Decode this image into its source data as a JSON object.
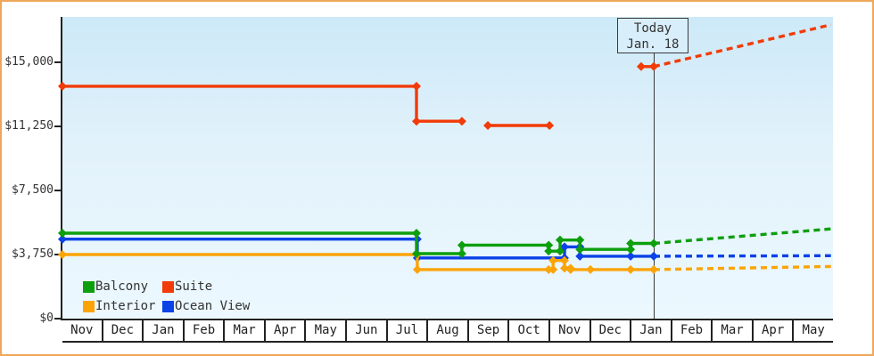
{
  "chart_data": {
    "type": "line",
    "x_axis": {
      "unit": "month",
      "months": [
        "Nov",
        "Dec",
        "Jan",
        "Feb",
        "Mar",
        "Apr",
        "May",
        "Jun",
        "Jul",
        "Aug",
        "Sep",
        "Oct",
        "Nov",
        "Dec",
        "Jan",
        "Feb",
        "Mar",
        "Apr",
        "May"
      ]
    },
    "y_axis": {
      "ticks": [
        {
          "label": "$0",
          "value": 0
        },
        {
          "label": "$3,750",
          "value": 3750
        },
        {
          "label": "$7,500",
          "value": 7500
        },
        {
          "label": "$11,250",
          "value": 11250
        },
        {
          "label": "$15,000",
          "value": 15000
        }
      ],
      "ylim": [
        0,
        17650
      ]
    },
    "grid": false,
    "legend_position": "bottom-left-inside",
    "today": {
      "label_line1": "Today",
      "label_line2": "Jan. 18",
      "month_position": 14.58
    },
    "series": [
      {
        "name": "Balcony",
        "color": "#0d9f0d",
        "segments": [
          {
            "dashed": false,
            "markers": true,
            "points": [
              [
                0,
                5000
              ],
              [
                8.73,
                5000
              ],
              [
                8.73,
                3800
              ],
              [
                9.85,
                3800
              ],
              [
                9.85,
                4300
              ],
              [
                11.99,
                4300
              ],
              [
                11.99,
                3950
              ],
              [
                12.27,
                3950
              ],
              [
                12.27,
                4600
              ],
              [
                12.76,
                4600
              ],
              [
                12.76,
                4050
              ],
              [
                14.01,
                4050
              ],
              [
                14.01,
                4400
              ],
              [
                14.58,
                4400
              ]
            ]
          },
          {
            "dashed": true,
            "markers": false,
            "points": [
              [
                14.58,
                4400
              ],
              [
                18.95,
                5250
              ]
            ]
          }
        ]
      },
      {
        "name": "Suite",
        "color": "#f23b08",
        "segments": [
          {
            "dashed": false,
            "markers": true,
            "points": [
              [
                0,
                13600
              ],
              [
                8.73,
                13600
              ],
              [
                8.73,
                11550
              ],
              [
                9.85,
                11550
              ]
            ]
          },
          {
            "dashed": false,
            "markers": true,
            "points": [
              [
                10.49,
                11300
              ],
              [
                12.01,
                11300
              ]
            ]
          },
          {
            "dashed": false,
            "markers": true,
            "points": [
              [
                14.27,
                14750
              ],
              [
                14.58,
                14750
              ]
            ]
          },
          {
            "dashed": true,
            "markers": false,
            "points": [
              [
                14.58,
                14750
              ],
              [
                18.95,
                17200
              ]
            ]
          }
        ]
      },
      {
        "name": "Interior",
        "color": "#fba408",
        "segments": [
          {
            "dashed": false,
            "markers": true,
            "points": [
              [
                0,
                3750
              ],
              [
                8.75,
                3750
              ],
              [
                8.75,
                2870
              ],
              [
                11.99,
                2870
              ],
              [
                12.1,
                2870
              ],
              [
                12.1,
                3400
              ],
              [
                12.38,
                3400
              ],
              [
                12.38,
                2950
              ],
              [
                12.53,
                2950
              ],
              [
                12.53,
                2870
              ],
              [
                13.02,
                2870
              ],
              [
                14.01,
                2870
              ],
              [
                14.58,
                2870
              ]
            ]
          },
          {
            "dashed": true,
            "markers": false,
            "points": [
              [
                14.58,
                2870
              ],
              [
                18.95,
                3050
              ]
            ]
          }
        ]
      },
      {
        "name": "Ocean View",
        "color": "#0c42e6",
        "segments": [
          {
            "dashed": false,
            "markers": true,
            "points": [
              [
                0,
                4650
              ],
              [
                8.75,
                4650
              ],
              [
                8.75,
                3550
              ],
              [
                12.38,
                3550
              ],
              [
                12.38,
                4200
              ],
              [
                12.76,
                4200
              ],
              [
                12.76,
                3650
              ],
              [
                14.01,
                3650
              ],
              [
                14.58,
                3650
              ]
            ]
          },
          {
            "dashed": true,
            "markers": false,
            "points": [
              [
                14.58,
                3650
              ],
              [
                18.95,
                3680
              ]
            ]
          }
        ]
      }
    ]
  }
}
